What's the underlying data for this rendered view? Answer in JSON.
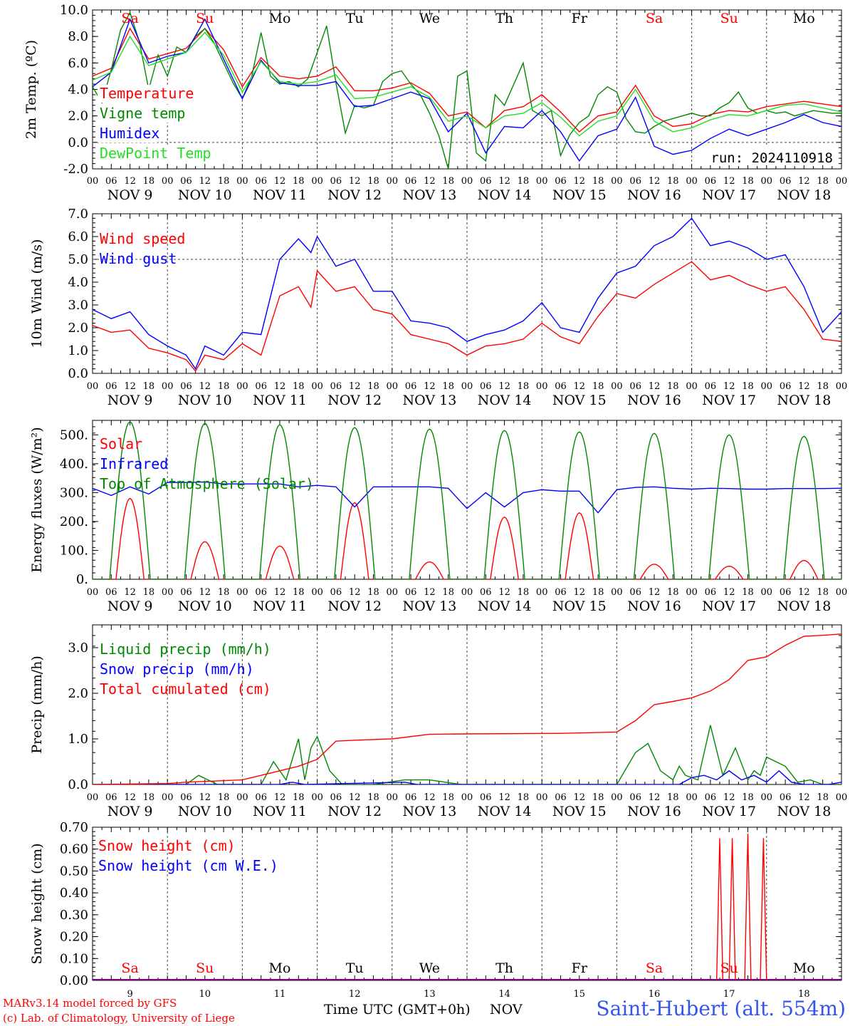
{
  "footer": {
    "model": "MARv3.14 model forced by GFS",
    "lab": "(c) Lab. of Climatology, University of Liege",
    "xlabel": "Time UTC (GMT+0h)",
    "month": "NOV",
    "station": "Saint-Hubert (alt. 554m)"
  },
  "colors": {
    "red": "#ff0000",
    "green": "#008800",
    "blue": "#0000ff",
    "lightgreen": "#22dd22",
    "purple": "#800080"
  },
  "days": {
    "hour_ticks": [
      "00",
      "06",
      "12",
      "18"
    ],
    "final_hour": "00",
    "date_labels": [
      "NOV  9",
      "NOV 10",
      "NOV 11",
      "NOV 12",
      "NOV 13",
      "NOV 14",
      "NOV 15",
      "NOV 16",
      "NOV 17",
      "NOV 18"
    ],
    "weekdays": [
      "Sa",
      "Su",
      "Mo",
      "Tu",
      "We",
      "Th",
      "Fr",
      "Sa",
      "Su",
      "Mo"
    ],
    "weekday_colors": [
      "#ff0000",
      "#ff0000",
      "#000000",
      "#000000",
      "#000000",
      "#000000",
      "#000000",
      "#ff0000",
      "#ff0000",
      "#000000"
    ],
    "day_numbers": [
      "9",
      "10",
      "11",
      "12",
      "13",
      "14",
      "15",
      "16",
      "17",
      "18"
    ]
  },
  "chart_data": [
    {
      "type": "line",
      "ylabel": "2m Temp. (ºC)",
      "ylim": [
        -2,
        10
      ],
      "yticks": [
        "-2.0",
        "0.0",
        "2.0",
        "4.0",
        "6.0",
        "8.0",
        "10.0"
      ],
      "ref_line": 0,
      "run_label": "run: 2024110918",
      "x_unit": "hours since NOV 9 00 UTC",
      "series": [
        {
          "name": "Temperature",
          "color": "#ff0000",
          "x": [
            0,
            6,
            12,
            18,
            24,
            30,
            36,
            42,
            48,
            54,
            60,
            66,
            72,
            78,
            84,
            90,
            96,
            102,
            108,
            114,
            120,
            126,
            132,
            138,
            144,
            150,
            156,
            162,
            168,
            174,
            180,
            186,
            192,
            198,
            204,
            210,
            216,
            222,
            228,
            234,
            240
          ],
          "y": [
            5.0,
            5.6,
            8.6,
            6.3,
            6.7,
            7.1,
            8.6,
            7.0,
            4.2,
            6.4,
            5.0,
            4.8,
            5.0,
            5.7,
            3.9,
            3.9,
            4.1,
            4.5,
            3.7,
            2.0,
            2.3,
            1.1,
            2.4,
            2.7,
            3.6,
            2.3,
            0.8,
            2.0,
            2.3,
            4.3,
            2.0,
            1.2,
            1.4,
            2.1,
            2.4,
            2.3,
            2.7,
            2.9,
            3.1,
            2.9,
            2.7
          ]
        },
        {
          "name": "Vigne temp",
          "color": "#008800",
          "x": [
            0,
            3,
            6,
            9,
            12,
            15,
            18,
            21,
            24,
            27,
            30,
            33,
            36,
            39,
            42,
            45,
            48,
            51,
            54,
            57,
            60,
            63,
            66,
            69,
            72,
            75,
            78,
            81,
            84,
            87,
            90,
            93,
            96,
            99,
            102,
            105,
            108,
            111,
            114,
            117,
            120,
            123,
            126,
            129,
            132,
            135,
            138,
            141,
            144,
            147,
            150,
            153,
            156,
            159,
            162,
            165,
            168,
            171,
            174,
            177,
            180,
            183,
            186,
            189,
            192,
            195,
            198,
            201,
            204,
            207,
            210,
            213,
            216,
            219,
            222,
            225,
            228,
            231,
            234,
            237,
            240
          ],
          "y": [
            4.2,
            3.0,
            5.5,
            8.5,
            9.8,
            7.6,
            4.0,
            6.6,
            5.0,
            7.2,
            6.8,
            8.0,
            8.6,
            7.5,
            6.0,
            4.5,
            3.3,
            5.0,
            8.3,
            5.0,
            4.4,
            4.6,
            4.2,
            4.8,
            6.8,
            8.8,
            4.5,
            0.7,
            2.8,
            2.6,
            2.8,
            4.6,
            5.2,
            5.4,
            4.4,
            3.6,
            2.2,
            0.5,
            -2.0,
            5.0,
            5.4,
            -0.8,
            -1.4,
            3.6,
            2.8,
            4.4,
            6.0,
            2.4,
            2.0,
            2.4,
            -1.0,
            0.6,
            1.5,
            2.0,
            3.6,
            4.2,
            3.8,
            1.8,
            0.8,
            0.7,
            1.2,
            1.6,
            1.8,
            2.0,
            2.2,
            2.0,
            2.0,
            2.6,
            3.0,
            3.8,
            2.6,
            2.2,
            2.4,
            2.2,
            2.3,
            2.0,
            2.2,
            2.4,
            2.3,
            2.2,
            2.2
          ]
        },
        {
          "name": "Humidex",
          "color": "#0000ff",
          "x": [
            0,
            6,
            12,
            18,
            24,
            30,
            36,
            42,
            48,
            54,
            60,
            66,
            72,
            78,
            84,
            90,
            96,
            102,
            108,
            114,
            120,
            126,
            132,
            138,
            144,
            150,
            156,
            162,
            168,
            174,
            180,
            186,
            192,
            198,
            204,
            210,
            216,
            222,
            228,
            234,
            240
          ],
          "y": [
            4.2,
            5.3,
            9.3,
            6.0,
            6.5,
            6.8,
            9.3,
            6.3,
            3.3,
            6.2,
            4.5,
            4.3,
            4.3,
            4.6,
            2.7,
            2.8,
            3.3,
            3.8,
            3.3,
            0.8,
            2.2,
            -0.8,
            1.2,
            1.1,
            2.4,
            0.8,
            -1.4,
            0.5,
            1.0,
            3.4,
            -0.3,
            -0.9,
            -0.6,
            0.3,
            1.0,
            0.5,
            1.0,
            1.5,
            2.1,
            1.5,
            1.2
          ]
        },
        {
          "name": "DewPoint Temp",
          "color": "#22dd22",
          "x": [
            0,
            6,
            12,
            18,
            24,
            30,
            36,
            42,
            48,
            54,
            60,
            66,
            72,
            78,
            84,
            90,
            96,
            102,
            108,
            114,
            120,
            126,
            132,
            138,
            144,
            150,
            156,
            162,
            168,
            174,
            180,
            186,
            192,
            198,
            204,
            210,
            216,
            222,
            228,
            234,
            240
          ],
          "y": [
            4.7,
            5.3,
            8.0,
            5.8,
            6.3,
            6.8,
            8.3,
            6.6,
            3.8,
            6.1,
            4.6,
            4.4,
            4.6,
            5.1,
            3.3,
            3.4,
            3.8,
            4.2,
            3.4,
            1.6,
            2.0,
            1.1,
            2.0,
            2.2,
            3.0,
            1.9,
            0.5,
            1.6,
            2.0,
            4.0,
            1.6,
            0.8,
            1.1,
            1.7,
            2.1,
            2.0,
            2.4,
            2.8,
            2.9,
            2.6,
            2.3
          ]
        }
      ]
    },
    {
      "type": "line",
      "ylabel": "10m Wind (m/s)",
      "ylim": [
        0,
        7
      ],
      "yticks": [
        "0.0",
        "1.0",
        "2.0",
        "3.0",
        "4.0",
        "5.0",
        "6.0",
        "7.0"
      ],
      "ref_line": 5,
      "x_unit": "hours since NOV 9 00 UTC",
      "series": [
        {
          "name": "Wind speed",
          "color": "#ff0000",
          "x": [
            0,
            6,
            12,
            18,
            24,
            30,
            33,
            36,
            42,
            48,
            54,
            60,
            66,
            70,
            72,
            78,
            84,
            90,
            96,
            102,
            108,
            114,
            120,
            126,
            132,
            138,
            144,
            150,
            156,
            162,
            168,
            174,
            180,
            186,
            192,
            198,
            204,
            210,
            216,
            222,
            228,
            234,
            240
          ],
          "y": [
            2.1,
            1.8,
            1.9,
            1.1,
            0.9,
            0.6,
            0.1,
            0.8,
            0.6,
            1.3,
            0.8,
            3.4,
            3.8,
            2.9,
            4.5,
            3.6,
            3.8,
            2.8,
            2.6,
            1.7,
            1.5,
            1.3,
            0.8,
            1.2,
            1.3,
            1.5,
            2.2,
            1.6,
            1.3,
            2.5,
            3.5,
            3.3,
            3.9,
            4.4,
            4.9,
            4.1,
            4.3,
            3.9,
            3.6,
            3.8,
            2.8,
            1.5,
            1.4
          ]
        },
        {
          "name": "Wind gust",
          "color": "#0000ff",
          "x": [
            0,
            6,
            12,
            18,
            24,
            30,
            33,
            36,
            42,
            48,
            54,
            60,
            66,
            70,
            72,
            78,
            84,
            90,
            96,
            102,
            108,
            114,
            120,
            126,
            132,
            138,
            144,
            150,
            156,
            162,
            168,
            174,
            180,
            186,
            192,
            198,
            204,
            210,
            216,
            222,
            228,
            234,
            240
          ],
          "y": [
            2.8,
            2.4,
            2.7,
            1.7,
            1.2,
            0.8,
            0.2,
            1.2,
            0.8,
            1.8,
            1.7,
            5.0,
            5.9,
            5.3,
            6.0,
            4.7,
            5.0,
            3.6,
            3.6,
            2.3,
            2.2,
            2.0,
            1.4,
            1.7,
            1.9,
            2.3,
            3.1,
            2.0,
            1.8,
            3.3,
            4.4,
            4.7,
            5.6,
            6.0,
            6.8,
            5.6,
            5.8,
            5.5,
            5.0,
            5.2,
            3.8,
            1.8,
            2.7
          ]
        }
      ]
    },
    {
      "type": "line",
      "ylabel": "Energy fluxes (W/m²)",
      "ylim": [
        0,
        550
      ],
      "yticks": [
        "0.",
        "100.",
        "200.",
        "300.",
        "400.",
        "500."
      ],
      "x_unit": "hours since NOV 9 00 UTC",
      "series": [
        {
          "name": "Solar",
          "color": "#ff0000",
          "day_peaks": [
            280,
            130,
            115,
            265,
            60,
            215,
            230,
            52,
            45,
            65
          ]
        },
        {
          "name": "Infrared",
          "color": "#0000ff",
          "x": [
            0,
            6,
            12,
            18,
            24,
            30,
            36,
            42,
            48,
            54,
            60,
            66,
            72,
            78,
            84,
            90,
            96,
            102,
            108,
            114,
            120,
            126,
            132,
            138,
            144,
            150,
            156,
            162,
            168,
            174,
            180,
            186,
            192,
            198,
            204,
            210,
            216,
            222,
            228,
            234,
            240
          ],
          "y": [
            315,
            290,
            320,
            295,
            335,
            335,
            337,
            330,
            330,
            330,
            330,
            320,
            325,
            320,
            250,
            320,
            320,
            320,
            320,
            315,
            245,
            300,
            250,
            300,
            310,
            305,
            305,
            230,
            310,
            318,
            320,
            315,
            312,
            315,
            314,
            312,
            312,
            314,
            314,
            314,
            315
          ]
        },
        {
          "name": "Top of Atmosphere (Solar)",
          "color": "#008800",
          "day_peaks": [
            545,
            540,
            535,
            525,
            520,
            515,
            510,
            505,
            500,
            495
          ]
        }
      ]
    },
    {
      "type": "line",
      "ylabel": "Precip (mm/h)",
      "ylim": [
        0,
        3.5
      ],
      "yticks": [
        "0.0",
        "1.0",
        "2.0",
        "3.0"
      ],
      "x_unit": "hours since NOV 9 00 UTC",
      "series": [
        {
          "name": "Liquid precip (mm/h)",
          "color": "#008800",
          "x": [
            0,
            30,
            34,
            40,
            54,
            58,
            62,
            66,
            68,
            70,
            72,
            76,
            80,
            90,
            100,
            108,
            118,
            138,
            168,
            174,
            178,
            182,
            186,
            188,
            190,
            194,
            198,
            202,
            206,
            210,
            212,
            214,
            216,
            222,
            226,
            230,
            234,
            240
          ],
          "y": [
            0,
            0,
            0.2,
            0,
            0,
            0.5,
            0.1,
            1.0,
            0.1,
            0.8,
            1.05,
            0.3,
            0,
            0,
            0.1,
            0.1,
            0,
            0,
            0,
            0.7,
            0.9,
            0.3,
            0.1,
            0.4,
            0.2,
            0.1,
            1.3,
            0.2,
            0.8,
            0.1,
            0.3,
            0.2,
            0.6,
            0.4,
            0.05,
            0.1,
            0,
            0
          ]
        },
        {
          "name": "Snow precip (mm/h)",
          "color": "#0000ff",
          "x": [
            0,
            60,
            64,
            68,
            100,
            104,
            120,
            188,
            192,
            196,
            200,
            204,
            208,
            212,
            216,
            220,
            224,
            228,
            232,
            236,
            240
          ],
          "y": [
            0,
            0,
            0.05,
            0,
            0.05,
            0,
            0,
            0,
            0.15,
            0.2,
            0.1,
            0.3,
            0.1,
            0.2,
            0.05,
            0.3,
            0.05,
            0,
            0,
            0,
            0.05
          ]
        },
        {
          "name": "Total cumulated (cm)",
          "color": "#ff0000",
          "x": [
            0,
            24,
            30,
            48,
            54,
            60,
            66,
            72,
            78,
            84,
            96,
            108,
            120,
            150,
            168,
            174,
            180,
            186,
            192,
            198,
            204,
            210,
            216,
            222,
            228,
            234,
            240
          ],
          "y": [
            0,
            0.02,
            0.05,
            0.1,
            0.2,
            0.3,
            0.4,
            0.55,
            0.95,
            0.97,
            1.0,
            1.1,
            1.11,
            1.12,
            1.15,
            1.4,
            1.75,
            1.82,
            1.9,
            2.05,
            2.3,
            2.72,
            2.8,
            3.05,
            3.25,
            3.27,
            3.3
          ]
        }
      ]
    },
    {
      "type": "line",
      "ylabel": "Snow height (cm)",
      "ylim": [
        0,
        0.7
      ],
      "yticks": [
        "0.00",
        "0.10",
        "0.20",
        "0.30",
        "0.40",
        "0.50",
        "0.60",
        "0.70"
      ],
      "x_unit": "hours since NOV 9 00 UTC",
      "series": [
        {
          "name": "Snow height (cm)",
          "color": "#ff0000",
          "x": [
            198,
            199,
            200,
            201,
            202,
            203,
            204,
            205,
            206,
            207,
            208,
            209,
            210,
            211,
            212,
            213,
            214,
            215,
            216,
            217,
            218,
            219
          ],
          "y": [
            0,
            0,
            0,
            0.65,
            0,
            0,
            0,
            0.65,
            0,
            0,
            0,
            0,
            0.67,
            0,
            0,
            0,
            0,
            0.65,
            0,
            0,
            0,
            0
          ]
        },
        {
          "name": "Snow height (cm W.E.)",
          "color": "#0000ff",
          "x": [
            0,
            240
          ],
          "y": [
            0,
            0
          ]
        }
      ]
    }
  ]
}
